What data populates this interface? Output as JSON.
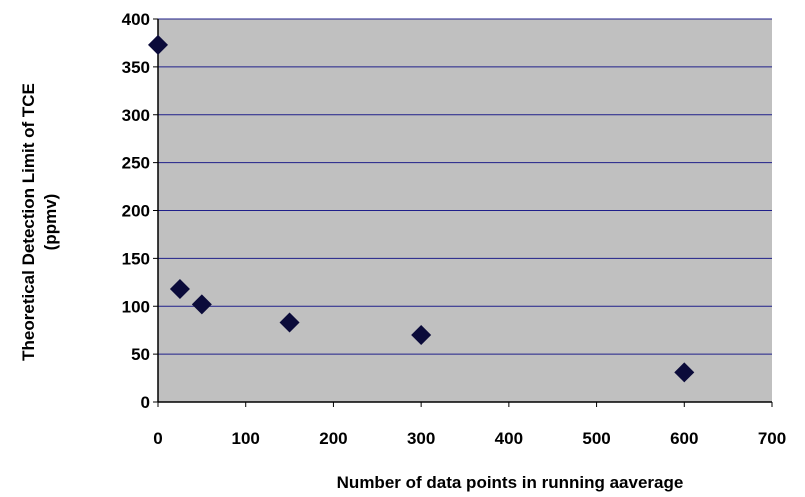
{
  "chart_data": {
    "type": "scatter",
    "x": [
      0,
      25,
      50,
      150,
      300,
      600
    ],
    "y": [
      373,
      118,
      102,
      83,
      70,
      31
    ],
    "xlim": [
      0,
      700
    ],
    "ylim": [
      0,
      400
    ],
    "xticks": [
      "0",
      "100",
      "200",
      "300",
      "400",
      "500",
      "600",
      "700"
    ],
    "yticks": [
      "0",
      "50",
      "100",
      "150",
      "200",
      "250",
      "300",
      "350",
      "400"
    ],
    "xlabel": "Number of data points in running aaverage",
    "ylabel_line1": "Theoretical Detection Limit of TCE",
    "ylabel_line2": "(ppmv)",
    "grid": true,
    "marker": "diamond",
    "colors": {
      "plot_background": "#c0c0c0",
      "gridline": "#1f1f8a",
      "marker": "#0b0b3a"
    }
  }
}
